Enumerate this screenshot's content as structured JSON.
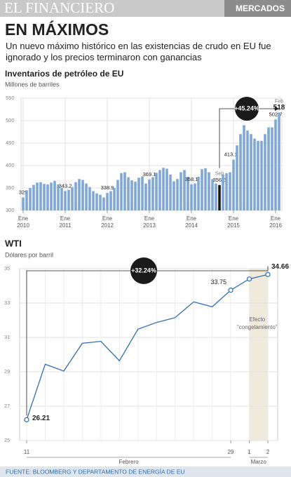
{
  "header": {
    "brand": "EL FINANCIERO",
    "section": "MERCADOS",
    "title": "EN MÁXIMOS",
    "subtitle": "Un nuevo máximo histórico en las existencias de crudo en EU fue ignorado y los precios terminaron con ganancias"
  },
  "chart_data": [
    {
      "type": "bar",
      "title": "Inventarios de petróleo de EU",
      "ylabel": "Millones de barriles",
      "categories": [
        "Ene",
        null,
        null,
        null,
        null,
        null,
        null,
        null,
        null,
        null,
        null,
        null,
        "Ene",
        null,
        null,
        null,
        null,
        null,
        null,
        null,
        null,
        null,
        null,
        null,
        "Ene",
        null,
        null,
        null,
        null,
        null,
        null,
        null,
        null,
        null,
        null,
        null,
        "Ene",
        null,
        null,
        null,
        null,
        null,
        null,
        null,
        null,
        null,
        null,
        null,
        "Ene",
        null,
        null,
        null,
        null,
        null,
        null,
        null,
        null,
        null,
        null,
        null,
        "Ene",
        null,
        null,
        null,
        null,
        null,
        null,
        null,
        null,
        null,
        null,
        null,
        "Ene",
        null
      ],
      "years": [
        "2010",
        "2011",
        "2012",
        "2013",
        "2014",
        "2015",
        "2016"
      ],
      "values": [
        329,
        345,
        350,
        357,
        362,
        363,
        359,
        358,
        362,
        366,
        358,
        350,
        343.2,
        346,
        352,
        363,
        370,
        368,
        360,
        352,
        343,
        338,
        335,
        329,
        338.9,
        343,
        350,
        368,
        383,
        385,
        374,
        367,
        364,
        373,
        376,
        360,
        369.1,
        374,
        384,
        390,
        395,
        393,
        380,
        365,
        370,
        385,
        390,
        375,
        358.1,
        360,
        375,
        392,
        394,
        385,
        370,
        360,
        356.6,
        380,
        383,
        385,
        413.1,
        445,
        470,
        490,
        478,
        470,
        460,
        455,
        455,
        470,
        485,
        485,
        502.7,
        518
      ],
      "value_labels": [
        "329",
        null,
        null,
        null,
        null,
        null,
        null,
        null,
        null,
        null,
        null,
        null,
        "343.2",
        null,
        null,
        null,
        null,
        null,
        null,
        null,
        null,
        null,
        null,
        null,
        "338.9",
        null,
        null,
        null,
        null,
        null,
        null,
        null,
        null,
        null,
        null,
        null,
        "369.1",
        null,
        null,
        null,
        null,
        null,
        null,
        null,
        null,
        null,
        null,
        null,
        "358.1",
        null,
        null,
        null,
        null,
        null,
        null,
        null,
        "356.6",
        null,
        null,
        null,
        "413.1",
        null,
        null,
        null,
        null,
        null,
        null,
        null,
        null,
        null,
        null,
        null,
        "502.7",
        "518"
      ],
      "value_label_months": [
        null,
        null,
        null,
        null,
        null,
        null,
        null,
        null,
        null,
        null,
        null,
        null,
        null,
        null,
        null,
        null,
        null,
        null,
        null,
        null,
        null,
        null,
        null,
        null,
        null,
        null,
        null,
        null,
        null,
        null,
        null,
        null,
        null,
        null,
        null,
        null,
        null,
        null,
        null,
        null,
        null,
        null,
        null,
        null,
        null,
        null,
        null,
        null,
        null,
        null,
        null,
        null,
        null,
        null,
        null,
        null,
        "Sep",
        null,
        null,
        null,
        null,
        null,
        null,
        null,
        null,
        null,
        null,
        null,
        null,
        null,
        null,
        null,
        null,
        "Feb"
      ],
      "color": "#7fa7d8",
      "highlight_color": "#1a1a1a",
      "annotation": "+45.24%",
      "ylim": [
        300,
        550
      ],
      "yticks": [
        300,
        350,
        400,
        450,
        500,
        550
      ],
      "grid": true
    },
    {
      "type": "line",
      "title": "WTI",
      "ylabel": "Dólares por barril",
      "categories": [
        "11",
        null,
        null,
        null,
        null,
        null,
        null,
        null,
        null,
        null,
        null,
        "29",
        "1",
        "2"
      ],
      "groups": [
        "Febrero",
        "Marzo"
      ],
      "values": [
        26.21,
        29.44,
        29.04,
        30.66,
        30.77,
        29.64,
        31.48,
        31.87,
        32.15,
        33.07,
        32.78,
        33.75,
        34.4,
        34.66
      ],
      "value_labels": [
        "26.21",
        null,
        null,
        null,
        null,
        null,
        null,
        null,
        null,
        null,
        null,
        "33.75",
        null,
        "34.66"
      ],
      "color": "#2f6db0",
      "shade_color": "#efeadb",
      "shade_note": [
        "Efecto",
        "“congelamiento”"
      ],
      "annotation": "+32.24%",
      "ylim": [
        25,
        35
      ],
      "yticks": [
        25,
        27,
        29,
        31,
        33,
        35
      ],
      "grid": true
    }
  ],
  "footer": "FUENTE: BLOOMBERG Y DEPARTAMENTO DE ENERGÍA DE EU"
}
